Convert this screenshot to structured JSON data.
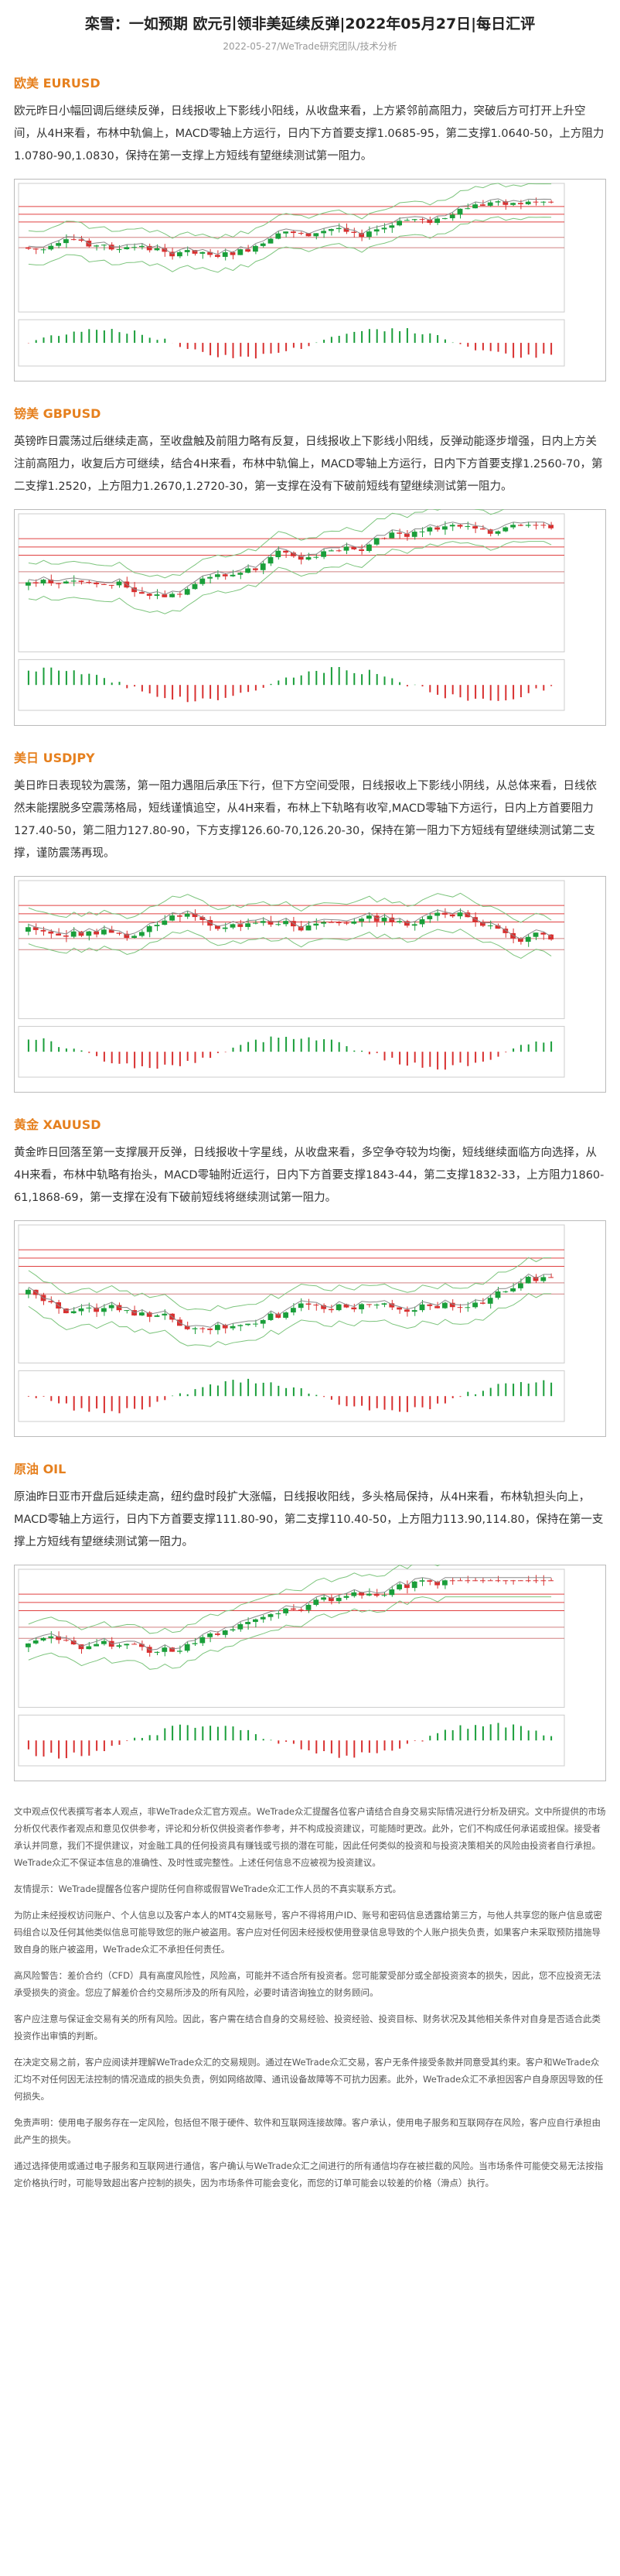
{
  "header": {
    "title": "栾雪：一如预期 欧元引领非美延续反弹|2022年05月27日|每日汇评",
    "meta": "2022-05-27/WeTrade研究团队/技术分析"
  },
  "sections": [
    {
      "heading": "欧美 EURUSD",
      "text": "欧元昨日小幅回调后继续反弹，日线报收上下影线小阳线，从收盘来看，上方紧邻前高阻力，突破后方可打开上升空间，从4H来看，布林中轨偏上，MACD零轴上方运行，日内下方首要支撑1.0685-95，第二支撑1.0640-50，上方阻力1.0780-90,1.0830，保持在第一支撑上方短线有望继续测试第一阻力。"
    },
    {
      "heading": "镑美 GBPUSD",
      "text": "英镑昨日震荡过后继续走高，至收盘触及前阻力略有反复，日线报收上下影线小阳线，反弹动能逐步增强，日内上方关注前高阻力，收复后方可继续，结合4H来看，布林中轨偏上，MACD零轴上方运行，日内下方首要支撑1.2560-70，第二支撑1.2520，上方阻力1.2670,1.2720-30，第一支撑在没有下破前短线有望继续测试第一阻力。"
    },
    {
      "heading": "美日 USDJPY",
      "text": "美日昨日表现较为震荡，第一阻力遇阻后承压下行，但下方空间受限，日线报收上下影线小阴线，从总体来看，日线依然未能摆脱多空震荡格局，短线谨慎追空，从4H来看，布林上下轨略有收窄,MACD零轴下方运行，日内上方首要阻力127.40-50，第二阻力127.80-90，下方支撑126.60-70,126.20-30，保持在第一阻力下方短线有望继续测试第二支撑，谨防震荡再现。"
    },
    {
      "heading": "黄金 XAUUSD",
      "text": "黄金昨日回落至第一支撑展开反弹，日线报收十字星线，从收盘来看，多空争夺较为均衡，短线继续面临方向选择，从4H来看，布林中轨略有抬头，MACD零轴附近运行，日内下方首要支撑1843-44，第二支撑1832-33，上方阻力1860-61,1868-69，第一支撑在没有下破前短线将继续测试第一阻力。"
    },
    {
      "heading": "原油 OIL",
      "text": "原油昨日亚市开盘后延续走高，纽约盘时段扩大涨幅，日线报收阳线，多头格局保持，从4H来看，布林轨担头向上，MACD零轴上方运行，日内下方首要支撑111.80-90，第二支撑110.40-50，上方阻力113.90,114.80，保持在第一支撑上方短线有望继续测试第一阻力。"
    }
  ],
  "disclaimer": [
    "文中观点仅代表撰写者本人观点，非WeTrade众汇官方观点。WeTrade众汇提醒各位客户请结合自身交易实际情况进行分析及研究。文中所提供的市场分析仅代表作者观点和意见仅供参考，评论和分析仅供投资者作参考，并不构成投资建议，可能随时更改。此外，它们不构成任何承诺或担保。接受者承认并同意，我们不提供建议，对金融工具的任何投资具有赚钱或亏损的潜在可能，因此任何类似的投资和与投资决策相关的风险由投资者自行承担。WeTrade众汇不保证本信息的准确性、及时性或完整性。上述任何信息不应被视为投资建议。",
    "友情提示：WeTrade提醒各位客户提防任何自称或假冒WeTrade众汇工作人员的不真实联系方式。",
    "为防止未经授权访问账户、个人信息以及客户本人的MT4交易账号，客户不得将用户ID、账号和密码信息透露给第三方，与他人共享您的账户信息或密码组合以及任何其他类似信息可能导致您的账户被盗用。客户应对任何因未经授权使用登录信息导致的个人账户损失负责，如果客户未采取预防措施导致自身的账户被盗用，WeTrade众汇不承担任何责任。",
    "高风险警告：差价合约（CFD）具有高度风险性，风险高，可能并不适合所有投资者。您可能蒙受部分或全部投资资本的损失，因此，您不应投资无法承受损失的资金。您应了解差价合约交易所涉及的所有风险，必要时请咨询独立的财务顾问。",
    "客户应注意与保证金交易有关的所有风险。因此，客户需在结合自身的交易经验、投资经验、投资目标、财务状况及其他相关条件对自身是否适合此类投资作出审慎的判断。",
    "在决定交易之前，客户应阅读并理解WeTrade众汇的交易规则。通过在WeTrade众汇交易，客户无条件接受条款并同意受其约束。客户和WeTrade众汇均不对任何因无法控制的情况造成的损失负责，例如网络故障、通讯设备故障等不可抗力因素。此外，WeTrade众汇不承担因客户自身原因导致的任何损失。",
    "免责声明：使用电子服务存在一定风险，包括但不限于硬件、软件和互联网连接故障。客户承认，使用电子服务和互联网存在风险，客户应自行承担由此产生的损失。",
    "通过选择使用或通过电子服务和互联网进行通信，客户确认与WeTrade众汇之间进行的所有通信均存在被拦截的风险。当市场条件可能使交易无法按指定价格执行时，可能导致超出客户控制的损失，因为市场条件可能会变化，而您的订单可能会以较差的价格（滑点）执行。"
  ]
}
